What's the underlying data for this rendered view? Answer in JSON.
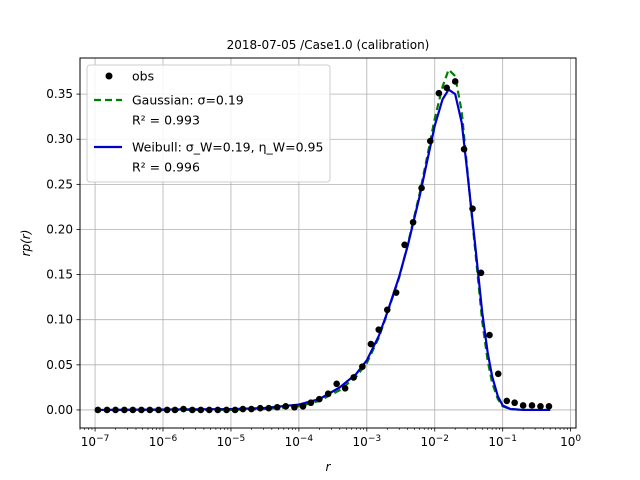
{
  "chart_data": {
    "type": "line",
    "title": "2018-07-05 /Case1.0 (calibration)",
    "xlabel": "r",
    "ylabel": "rp(r)",
    "xscale": "log",
    "xlim": [
      6e-08,
      1.2
    ],
    "ylim": [
      -0.02,
      0.39
    ],
    "x_ticks": [
      {
        "value": 1e-07,
        "base": "10",
        "exp": "−7"
      },
      {
        "value": 1e-06,
        "base": "10",
        "exp": "−6"
      },
      {
        "value": 1e-05,
        "base": "10",
        "exp": "−5"
      },
      {
        "value": 0.0001,
        "base": "10",
        "exp": "−4"
      },
      {
        "value": 0.001,
        "base": "10",
        "exp": "−3"
      },
      {
        "value": 0.01,
        "base": "10",
        "exp": "−2"
      },
      {
        "value": 0.1,
        "base": "10",
        "exp": "−1"
      },
      {
        "value": 1,
        "base": "10",
        "exp": "0"
      }
    ],
    "y_ticks": [
      "0.00",
      "0.05",
      "0.10",
      "0.15",
      "0.20",
      "0.25",
      "0.30",
      "0.35"
    ],
    "grid": true,
    "legend_position": "upper-left",
    "legend": [
      {
        "key": "obs",
        "lines": [
          "obs"
        ]
      },
      {
        "key": "gauss",
        "lines": [
          "Gaussian: σ=0.19",
          "R² = 0.993"
        ]
      },
      {
        "key": "weib",
        "lines": [
          "Weibull: σ_W=0.19, η_W=0.95",
          "R² = 0.996"
        ]
      }
    ],
    "series": [
      {
        "key": "obs",
        "name": "obs",
        "style": "markers",
        "color": "#000000",
        "points": [
          [
            1.1e-07,
            0.0
          ],
          [
            1.5e-07,
            0.0
          ],
          [
            2e-07,
            0.0
          ],
          [
            2.7e-07,
            0.0
          ],
          [
            3.6e-07,
            0.0
          ],
          [
            4.8e-07,
            0.0
          ],
          [
            6.4e-07,
            0.0
          ],
          [
            8.6e-07,
            0.0
          ],
          [
            1.15e-06,
            0.0
          ],
          [
            1.5e-06,
            0.0
          ],
          [
            2e-06,
            0.001
          ],
          [
            2.7e-06,
            0.0
          ],
          [
            3.6e-06,
            0.0
          ],
          [
            4.8e-06,
            0.0
          ],
          [
            6.4e-06,
            0.0
          ],
          [
            8.6e-06,
            0.0
          ],
          [
            1.15e-05,
            0.0
          ],
          [
            1.5e-05,
            0.001
          ],
          [
            2e-05,
            0.001
          ],
          [
            2.7e-05,
            0.002
          ],
          [
            3.6e-05,
            0.002
          ],
          [
            4.8e-05,
            0.003
          ],
          [
            6.4e-05,
            0.004
          ],
          [
            8.6e-05,
            0.003
          ],
          [
            0.000115,
            0.004
          ],
          [
            0.00015,
            0.008
          ],
          [
            0.0002,
            0.012
          ],
          [
            0.00027,
            0.018
          ],
          [
            0.00036,
            0.029
          ],
          [
            0.00048,
            0.024
          ],
          [
            0.00064,
            0.036
          ],
          [
            0.00086,
            0.048
          ],
          [
            0.00115,
            0.073
          ],
          [
            0.0015,
            0.089
          ],
          [
            0.002,
            0.111
          ],
          [
            0.0027,
            0.13
          ],
          [
            0.0036,
            0.183
          ],
          [
            0.0048,
            0.208
          ],
          [
            0.0064,
            0.246
          ],
          [
            0.0086,
            0.298
          ],
          [
            0.0115,
            0.351
          ],
          [
            0.015,
            0.357
          ],
          [
            0.02,
            0.364
          ],
          [
            0.027,
            0.289
          ],
          [
            0.036,
            0.223
          ],
          [
            0.048,
            0.152
          ],
          [
            0.064,
            0.083
          ],
          [
            0.086,
            0.04
          ],
          [
            0.115,
            0.01
          ],
          [
            0.15,
            0.008
          ],
          [
            0.2,
            0.005
          ],
          [
            0.27,
            0.005
          ],
          [
            0.36,
            0.004
          ],
          [
            0.48,
            0.004
          ]
        ]
      },
      {
        "key": "gauss",
        "name": "Gaussian",
        "style": "dashed",
        "color": "#007f00",
        "points": [
          [
            1e-07,
            0
          ],
          [
            1e-05,
            0.0
          ],
          [
            3e-05,
            0.001
          ],
          [
            0.0001,
            0.004
          ],
          [
            0.0002,
            0.01
          ],
          [
            0.0004,
            0.022
          ],
          [
            0.0007,
            0.037
          ],
          [
            0.001,
            0.052
          ],
          [
            0.0015,
            0.08
          ],
          [
            0.002,
            0.107
          ],
          [
            0.003,
            0.147
          ],
          [
            0.004,
            0.183
          ],
          [
            0.006,
            0.24
          ],
          [
            0.008,
            0.286
          ],
          [
            0.01,
            0.323
          ],
          [
            0.013,
            0.358
          ],
          [
            0.016,
            0.377
          ],
          [
            0.02,
            0.37
          ],
          [
            0.025,
            0.33
          ],
          [
            0.03,
            0.268
          ],
          [
            0.04,
            0.172
          ],
          [
            0.05,
            0.098
          ],
          [
            0.06,
            0.055
          ],
          [
            0.07,
            0.03
          ],
          [
            0.085,
            0.012
          ],
          [
            0.1,
            0.004
          ],
          [
            0.13,
            0.001
          ],
          [
            0.2,
            0.0
          ],
          [
            0.5,
            0.0
          ]
        ]
      },
      {
        "key": "weib",
        "name": "Weibull",
        "style": "solid",
        "color": "#0000cc",
        "points": [
          [
            1e-07,
            0
          ],
          [
            1e-05,
            0.001
          ],
          [
            3e-05,
            0.002
          ],
          [
            0.0001,
            0.006
          ],
          [
            0.0002,
            0.012
          ],
          [
            0.0004,
            0.025
          ],
          [
            0.0007,
            0.04
          ],
          [
            0.001,
            0.055
          ],
          [
            0.0015,
            0.082
          ],
          [
            0.002,
            0.108
          ],
          [
            0.003,
            0.148
          ],
          [
            0.004,
            0.182
          ],
          [
            0.006,
            0.237
          ],
          [
            0.008,
            0.281
          ],
          [
            0.01,
            0.315
          ],
          [
            0.013,
            0.344
          ],
          [
            0.016,
            0.355
          ],
          [
            0.02,
            0.35
          ],
          [
            0.025,
            0.318
          ],
          [
            0.03,
            0.265
          ],
          [
            0.04,
            0.178
          ],
          [
            0.05,
            0.108
          ],
          [
            0.06,
            0.064
          ],
          [
            0.07,
            0.037
          ],
          [
            0.085,
            0.015
          ],
          [
            0.1,
            0.005
          ],
          [
            0.13,
            0.001
          ],
          [
            0.2,
            0.0
          ],
          [
            0.5,
            0.0
          ]
        ]
      }
    ]
  }
}
